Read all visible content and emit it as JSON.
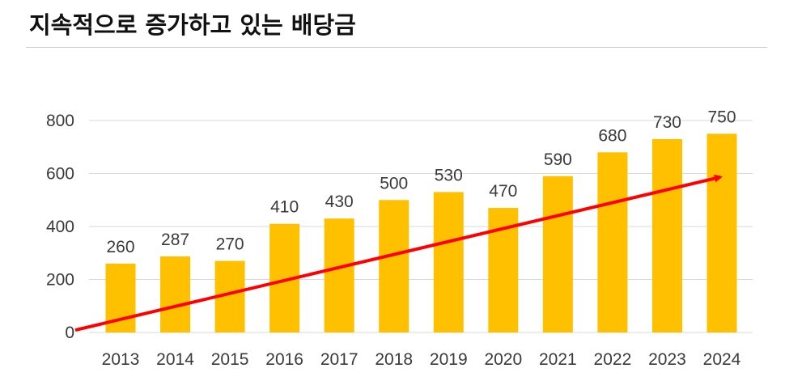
{
  "title": "지속적으로 증가하고 있는 배당금",
  "colors": {
    "bar": "#FFC000",
    "trend_arrow": "#FF0000",
    "grid": "#d9d9d9",
    "text": "#3a3a3a"
  },
  "chart_data": {
    "type": "bar",
    "title": "지속적으로 증가하고 있는 배당금",
    "xlabel": "",
    "ylabel": "",
    "categories": [
      "2013",
      "2014",
      "2015",
      "2016",
      "2017",
      "2018",
      "2019",
      "2020",
      "2021",
      "2022",
      "2023",
      "2024"
    ],
    "values": [
      260,
      287,
      270,
      410,
      430,
      500,
      530,
      470,
      590,
      680,
      730,
      750
    ],
    "data_labels": [
      "260",
      "287",
      "270",
      "410",
      "430",
      "500",
      "530",
      "470",
      "590",
      "680",
      "730",
      "750"
    ],
    "ylim": [
      0,
      800
    ],
    "yticks": [
      0,
      200,
      400,
      600,
      800
    ],
    "ytick_labels": [
      "0",
      "200",
      "400",
      "600",
      "800"
    ],
    "grid": true,
    "legend": "none",
    "trend_arrow": {
      "from": {
        "x": "2013",
        "y": 70
      },
      "to": {
        "x": "2024",
        "y": 620
      }
    }
  }
}
